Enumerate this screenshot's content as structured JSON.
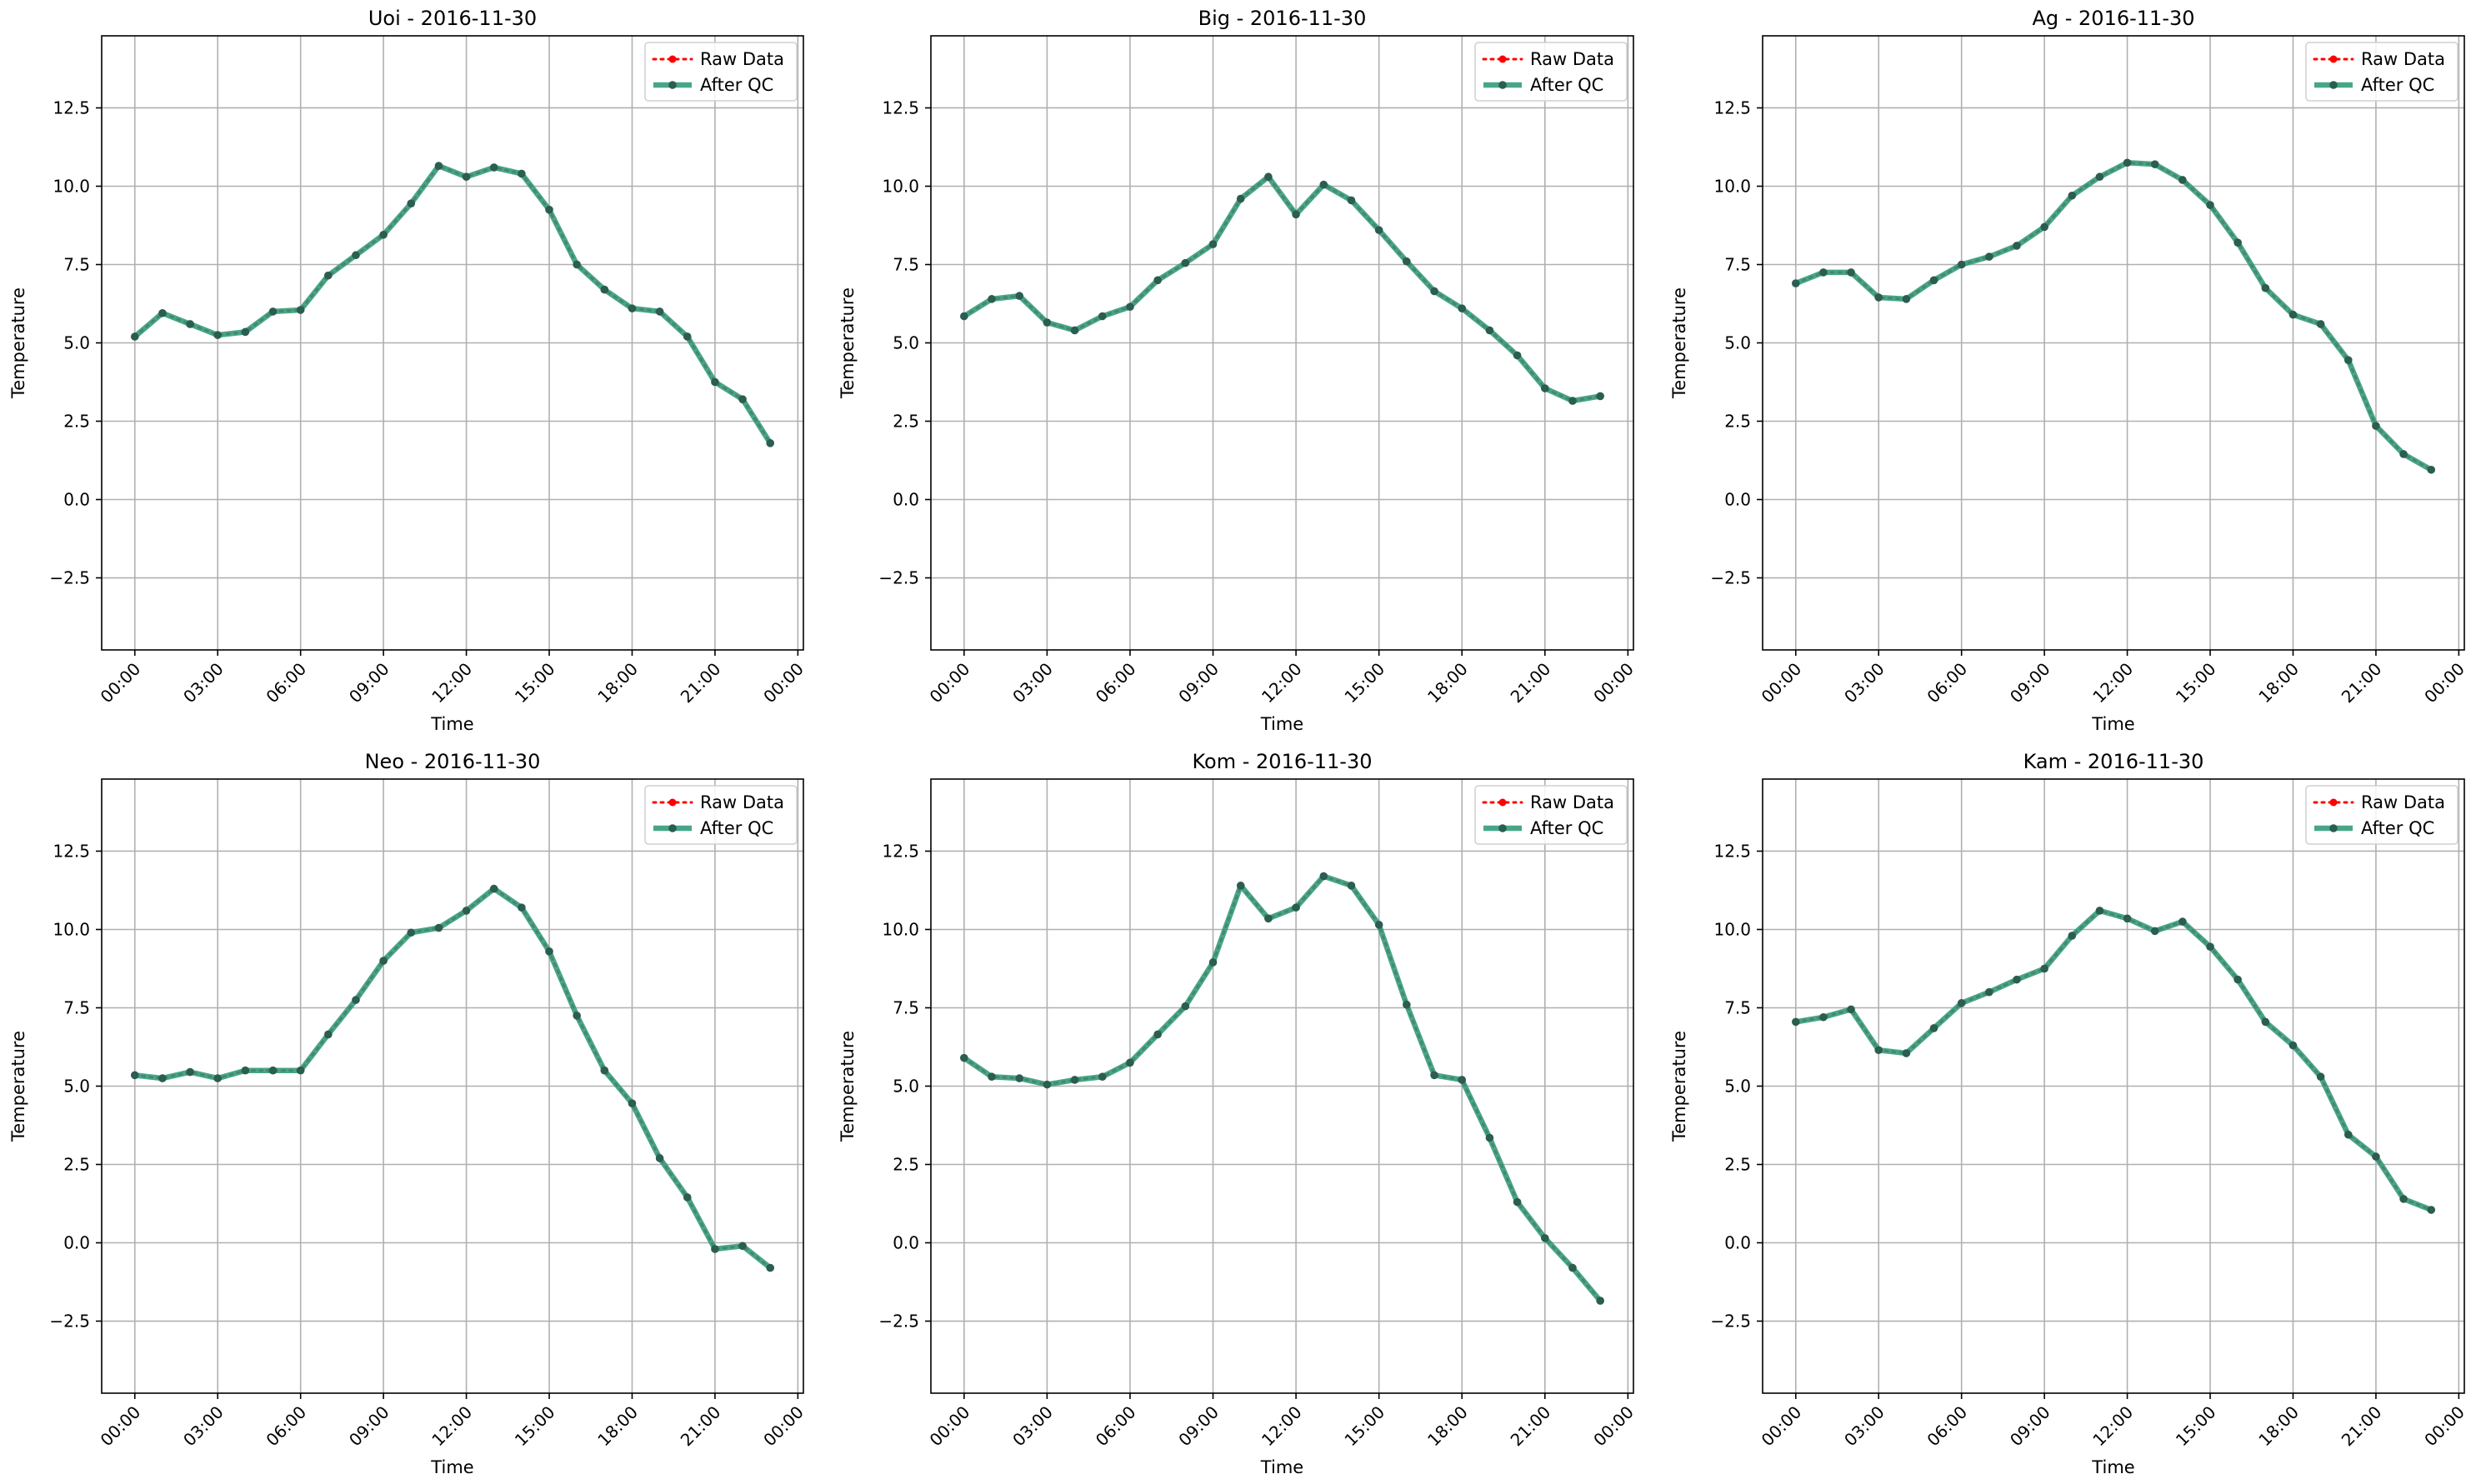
{
  "figure": {
    "x_tick_labels": [
      "00:00",
      "03:00",
      "06:00",
      "09:00",
      "12:00",
      "15:00",
      "18:00",
      "21:00",
      "00:00"
    ],
    "legend": [
      "Raw Data",
      "After QC"
    ],
    "colors": {
      "raw": "#ff0000",
      "qc": "#2e9a78",
      "qc_marker": "#2b5d52",
      "grid": "#b0b0b0",
      "axes": "#000000"
    }
  },
  "chart_data": [
    {
      "type": "line",
      "title": "Uoi - 2016-11-30",
      "xlabel": "Time",
      "ylabel": "Temperature",
      "ylim": [
        -4.8,
        14.8
      ],
      "y_ticks": [
        -2.5,
        0.0,
        2.5,
        5.0,
        7.5,
        10.0,
        12.5
      ],
      "x_hours": [
        0,
        1,
        2,
        3,
        4,
        5,
        6,
        7,
        8,
        9,
        10,
        11,
        12,
        13,
        14,
        15,
        16,
        17,
        18,
        19,
        20,
        21,
        22,
        23
      ],
      "grid": true,
      "legend_position": "top-right",
      "series": [
        {
          "name": "Raw Data",
          "values": [
            5.2,
            5.95,
            5.6,
            5.25,
            5.35,
            6.0,
            6.05,
            7.15,
            7.8,
            8.45,
            9.45,
            10.65,
            10.3,
            10.6,
            10.4,
            9.25,
            7.5,
            6.7,
            6.1,
            6.0,
            5.2,
            3.75,
            3.2,
            1.8
          ]
        },
        {
          "name": "After QC",
          "values": [
            5.2,
            5.95,
            5.6,
            5.25,
            5.35,
            6.0,
            6.05,
            7.15,
            7.8,
            8.45,
            9.45,
            10.65,
            10.3,
            10.6,
            10.4,
            9.25,
            7.5,
            6.7,
            6.1,
            6.0,
            5.2,
            3.75,
            3.2,
            1.8
          ]
        }
      ]
    },
    {
      "type": "line",
      "title": "Big - 2016-11-30",
      "xlabel": "Time",
      "ylabel": "Temperature",
      "ylim": [
        -4.8,
        14.8
      ],
      "y_ticks": [
        -2.5,
        0.0,
        2.5,
        5.0,
        7.5,
        10.0,
        12.5
      ],
      "x_hours": [
        0,
        1,
        2,
        3,
        4,
        5,
        6,
        7,
        8,
        9,
        10,
        11,
        12,
        13,
        14,
        15,
        16,
        17,
        18,
        19,
        20,
        21,
        22,
        23
      ],
      "grid": true,
      "legend_position": "top-right",
      "series": [
        {
          "name": "Raw Data",
          "values": [
            5.85,
            6.4,
            6.5,
            5.65,
            5.4,
            5.85,
            6.15,
            7.0,
            7.55,
            8.15,
            9.6,
            10.3,
            9.1,
            10.05,
            9.55,
            8.6,
            7.6,
            6.65,
            6.1,
            5.4,
            4.6,
            3.55,
            3.15,
            3.3
          ]
        },
        {
          "name": "After QC",
          "values": [
            5.85,
            6.4,
            6.5,
            5.65,
            5.4,
            5.85,
            6.15,
            7.0,
            7.55,
            8.15,
            9.6,
            10.3,
            9.1,
            10.05,
            9.55,
            8.6,
            7.6,
            6.65,
            6.1,
            5.4,
            4.6,
            3.55,
            3.15,
            3.3
          ]
        }
      ]
    },
    {
      "type": "line",
      "title": "Ag - 2016-11-30",
      "xlabel": "Time",
      "ylabel": "Temperature",
      "ylim": [
        -4.8,
        14.8
      ],
      "y_ticks": [
        -2.5,
        0.0,
        2.5,
        5.0,
        7.5,
        10.0,
        12.5
      ],
      "x_hours": [
        0,
        1,
        2,
        3,
        4,
        5,
        6,
        7,
        8,
        9,
        10,
        11,
        12,
        13,
        14,
        15,
        16,
        17,
        18,
        19,
        20,
        21,
        22,
        23
      ],
      "grid": true,
      "legend_position": "top-right",
      "series": [
        {
          "name": "Raw Data",
          "values": [
            6.9,
            7.25,
            7.25,
            6.45,
            6.4,
            7.0,
            7.5,
            7.75,
            8.1,
            8.7,
            9.7,
            10.3,
            10.75,
            10.7,
            10.2,
            9.4,
            8.2,
            6.75,
            5.9,
            5.6,
            4.45,
            2.35,
            1.45,
            0.95
          ]
        },
        {
          "name": "After QC",
          "values": [
            6.9,
            7.25,
            7.25,
            6.45,
            6.4,
            7.0,
            7.5,
            7.75,
            8.1,
            8.7,
            9.7,
            10.3,
            10.75,
            10.7,
            10.2,
            9.4,
            8.2,
            6.75,
            5.9,
            5.6,
            4.45,
            2.35,
            1.45,
            0.95
          ]
        }
      ]
    },
    {
      "type": "line",
      "title": "Neo - 2016-11-30",
      "xlabel": "Time",
      "ylabel": "Temperature",
      "ylim": [
        -4.8,
        14.8
      ],
      "y_ticks": [
        -2.5,
        0.0,
        2.5,
        5.0,
        7.5,
        10.0,
        12.5
      ],
      "x_hours": [
        0,
        1,
        2,
        3,
        4,
        5,
        6,
        7,
        8,
        9,
        10,
        11,
        12,
        13,
        14,
        15,
        16,
        17,
        18,
        19,
        20,
        21,
        22,
        23
      ],
      "grid": true,
      "legend_position": "top-right",
      "series": [
        {
          "name": "Raw Data",
          "values": [
            5.35,
            5.25,
            5.45,
            5.25,
            5.5,
            5.5,
            5.5,
            6.65,
            7.75,
            9.0,
            9.9,
            10.05,
            10.6,
            11.3,
            10.7,
            9.3,
            7.25,
            5.5,
            4.45,
            2.7,
            1.45,
            -0.2,
            -0.1,
            -0.8
          ]
        },
        {
          "name": "After QC",
          "values": [
            5.35,
            5.25,
            5.45,
            5.25,
            5.5,
            5.5,
            5.5,
            6.65,
            7.75,
            9.0,
            9.9,
            10.05,
            10.6,
            11.3,
            10.7,
            9.3,
            7.25,
            5.5,
            4.45,
            2.7,
            1.45,
            -0.2,
            -0.1,
            -0.8
          ]
        }
      ]
    },
    {
      "type": "line",
      "title": "Kom - 2016-11-30",
      "xlabel": "Time",
      "ylabel": "Temperature",
      "ylim": [
        -4.8,
        14.8
      ],
      "y_ticks": [
        -2.5,
        0.0,
        2.5,
        5.0,
        7.5,
        10.0,
        12.5
      ],
      "x_hours": [
        0,
        1,
        2,
        3,
        4,
        5,
        6,
        7,
        8,
        9,
        10,
        11,
        12,
        13,
        14,
        15,
        16,
        17,
        18,
        19,
        20,
        21,
        22,
        23
      ],
      "grid": true,
      "legend_position": "top-right",
      "series": [
        {
          "name": "Raw Data",
          "values": [
            5.9,
            5.3,
            5.25,
            5.05,
            5.2,
            5.3,
            5.75,
            6.65,
            7.55,
            8.95,
            11.4,
            10.35,
            10.7,
            11.7,
            11.4,
            10.15,
            7.6,
            5.35,
            5.2,
            3.35,
            1.3,
            0.15,
            -0.8,
            -1.85
          ]
        },
        {
          "name": "After QC",
          "values": [
            5.9,
            5.3,
            5.25,
            5.05,
            5.2,
            5.3,
            5.75,
            6.65,
            7.55,
            8.95,
            11.4,
            10.35,
            10.7,
            11.7,
            11.4,
            10.15,
            7.6,
            5.35,
            5.2,
            3.35,
            1.3,
            0.15,
            -0.8,
            -1.85
          ]
        }
      ]
    },
    {
      "type": "line",
      "title": "Kam - 2016-11-30",
      "xlabel": "Time",
      "ylabel": "Temperature",
      "ylim": [
        -4.8,
        14.8
      ],
      "y_ticks": [
        -2.5,
        0.0,
        2.5,
        5.0,
        7.5,
        10.0,
        12.5
      ],
      "x_hours": [
        0,
        1,
        2,
        3,
        4,
        5,
        6,
        7,
        8,
        9,
        10,
        11,
        12,
        13,
        14,
        15,
        16,
        17,
        18,
        19,
        20,
        21,
        22,
        23
      ],
      "grid": true,
      "legend_position": "top-right",
      "series": [
        {
          "name": "Raw Data",
          "values": [
            7.05,
            7.2,
            7.45,
            6.15,
            6.05,
            6.85,
            7.65,
            8.0,
            8.4,
            8.75,
            9.8,
            10.6,
            10.35,
            9.95,
            10.25,
            9.45,
            8.4,
            7.05,
            6.3,
            5.3,
            3.45,
            2.75,
            1.4,
            1.05
          ]
        },
        {
          "name": "After QC",
          "values": [
            7.05,
            7.2,
            7.45,
            6.15,
            6.05,
            6.85,
            7.65,
            8.0,
            8.4,
            8.75,
            9.8,
            10.6,
            10.35,
            9.95,
            10.25,
            9.45,
            8.4,
            7.05,
            6.3,
            5.3,
            3.45,
            2.75,
            1.4,
            1.05
          ]
        }
      ]
    }
  ]
}
